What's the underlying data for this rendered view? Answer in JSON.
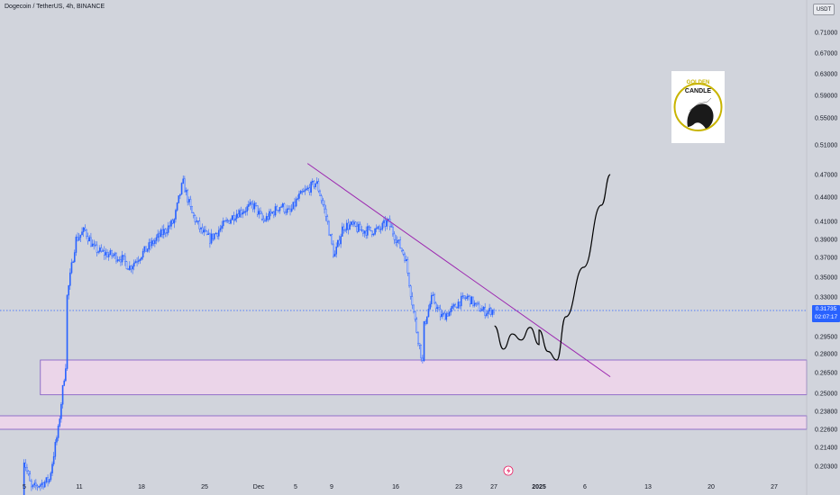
{
  "header": {
    "symbol_title": "Dogecoin / TetherUS, 4h, BINANCE",
    "currency": "USDT"
  },
  "price_badge": {
    "price": "0.31735",
    "countdown": "02:07:17"
  },
  "logo": {
    "line1": "GOLDEN",
    "line2": "CANDLE"
  },
  "event_marker_icon": "lightning-icon",
  "colors": {
    "background": "#d1d4dc",
    "candle": "#2962ff",
    "trendline": "#9c27b0",
    "zone_fill": "#f3d6ee",
    "zone_border": "#7e57c2",
    "projection": "#000000",
    "price_line": "#2962ff",
    "logo_ring": "#c8b400"
  },
  "chart_data": {
    "type": "candlestick",
    "title": "Dogecoin / TetherUS, 4h, BINANCE",
    "x_tick_labels": [
      "5",
      "11",
      "18",
      "25",
      "Dec",
      "5",
      "9",
      "16",
      "23",
      "27",
      "2025",
      "6",
      "13",
      "20",
      "27"
    ],
    "y_tick_labels": [
      "0.71000",
      "0.67000",
      "0.63000",
      "0.59000",
      "0.55000",
      "0.51000",
      "0.47000",
      "0.44000",
      "0.41000",
      "0.39000",
      "0.37000",
      "0.35000",
      "0.33000",
      "0.31000",
      "0.29500",
      "0.28000",
      "0.26500",
      "0.25000",
      "0.23800",
      "0.22600",
      "0.21400",
      "0.20300"
    ],
    "current_price": 0.31735,
    "price_path": [
      {
        "x": "Nov 5",
        "y": 0.178
      },
      {
        "x": "Nov 5",
        "y": 0.21
      },
      {
        "x": "Nov 6",
        "y": 0.19
      },
      {
        "x": "Nov 8",
        "y": 0.195
      },
      {
        "x": "Nov 9",
        "y": 0.225
      },
      {
        "x": "Nov 10",
        "y": 0.28
      },
      {
        "x": "Nov 10",
        "y": 0.33
      },
      {
        "x": "Nov 11",
        "y": 0.39
      },
      {
        "x": "Nov 12",
        "y": 0.4
      },
      {
        "x": "Nov 13",
        "y": 0.38
      },
      {
        "x": "Nov 14",
        "y": 0.375
      },
      {
        "x": "Nov 16",
        "y": 0.37
      },
      {
        "x": "Nov 17",
        "y": 0.36
      },
      {
        "x": "Nov 18",
        "y": 0.37
      },
      {
        "x": "Nov 19",
        "y": 0.38
      },
      {
        "x": "Nov 21",
        "y": 0.4
      },
      {
        "x": "Nov 22",
        "y": 0.41
      },
      {
        "x": "Nov 23",
        "y": 0.46
      },
      {
        "x": "Nov 24",
        "y": 0.42
      },
      {
        "x": "Nov 25",
        "y": 0.4
      },
      {
        "x": "Nov 26",
        "y": 0.39
      },
      {
        "x": "Nov 27",
        "y": 0.4
      },
      {
        "x": "Nov 28",
        "y": 0.41
      },
      {
        "x": "Nov 29",
        "y": 0.42
      },
      {
        "x": "Dec 1",
        "y": 0.43
      },
      {
        "x": "Dec 2",
        "y": 0.41
      },
      {
        "x": "Dec 3",
        "y": 0.42
      },
      {
        "x": "Dec 4",
        "y": 0.43
      },
      {
        "x": "Dec 5",
        "y": 0.42
      },
      {
        "x": "Dec 6",
        "y": 0.44
      },
      {
        "x": "Dec 7",
        "y": 0.45
      },
      {
        "x": "Dec 8",
        "y": 0.46
      },
      {
        "x": "Dec 9",
        "y": 0.42
      },
      {
        "x": "Dec 10",
        "y": 0.37
      },
      {
        "x": "Dec 11",
        "y": 0.405
      },
      {
        "x": "Dec 12",
        "y": 0.405
      },
      {
        "x": "Dec 13",
        "y": 0.4
      },
      {
        "x": "Dec 15",
        "y": 0.4
      },
      {
        "x": "Dec 16",
        "y": 0.41
      },
      {
        "x": "Dec 17",
        "y": 0.39
      },
      {
        "x": "Dec 18",
        "y": 0.37
      },
      {
        "x": "Dec 19",
        "y": 0.31
      },
      {
        "x": "Dec 20",
        "y": 0.27
      },
      {
        "x": "Dec 20",
        "y": 0.3
      },
      {
        "x": "Dec 21",
        "y": 0.33
      },
      {
        "x": "Dec 22",
        "y": 0.31
      },
      {
        "x": "Dec 23",
        "y": 0.315
      },
      {
        "x": "Dec 24",
        "y": 0.325
      },
      {
        "x": "Dec 25",
        "y": 0.33
      },
      {
        "x": "Dec 26",
        "y": 0.32
      },
      {
        "x": "Dec 27",
        "y": 0.315
      },
      {
        "x": "Dec 28",
        "y": 0.317
      }
    ],
    "trendline": [
      {
        "x": "Dec 7",
        "y": 0.485
      },
      {
        "x": "Jan 10",
        "y": 0.262
      }
    ],
    "zones": [
      {
        "x_start": "Nov 7",
        "x_end": "Feb 2",
        "y_low": 0.249,
        "y_high": 0.275
      },
      {
        "x_start": "Oct 31",
        "x_end": "Feb 2",
        "y_low": 0.226,
        "y_high": 0.235
      }
    ],
    "projection_path": [
      {
        "x": "Dec 28",
        "y": 0.303
      },
      {
        "x": "Dec 29",
        "y": 0.284
      },
      {
        "x": "Dec 30",
        "y": 0.297
      },
      {
        "x": "Dec 31",
        "y": 0.292
      },
      {
        "x": "Jan 1",
        "y": 0.302
      },
      {
        "x": "Jan 2",
        "y": 0.288
      },
      {
        "x": "Jan 2",
        "y": 0.3
      },
      {
        "x": "Jan 3",
        "y": 0.282
      },
      {
        "x": "Jan 4",
        "y": 0.275
      },
      {
        "x": "Jan 5",
        "y": 0.31
      },
      {
        "x": "Jan 7",
        "y": 0.36
      },
      {
        "x": "Jan 9",
        "y": 0.43
      },
      {
        "x": "Jan 10",
        "y": 0.47
      }
    ],
    "grid": false,
    "legend": "none"
  }
}
